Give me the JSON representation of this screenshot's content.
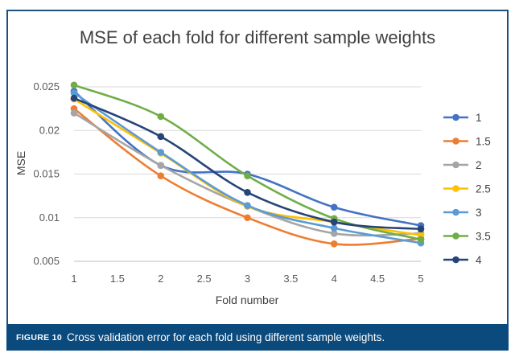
{
  "figure": {
    "label": "FIGURE 10",
    "caption": "Cross validation error for each fold using different sample weights."
  },
  "chart_data": {
    "type": "line",
    "title": "MSE of each fold for different sample weights",
    "xlabel": "Fold number",
    "ylabel": "MSE",
    "x": [
      1,
      2,
      3,
      4,
      5
    ],
    "xlim": [
      1,
      5
    ],
    "ylim": [
      0.005,
      0.025
    ],
    "x_ticks": [
      1,
      1.5,
      2,
      2.5,
      3,
      3.5,
      4,
      4.5,
      5
    ],
    "y_ticks": [
      0.005,
      0.01,
      0.015,
      0.02,
      0.025
    ],
    "y_tick_labels": [
      "0.005",
      "0.01",
      "0.015",
      "0.02",
      "0.025"
    ],
    "grid": "horizontal",
    "legend_position": "right",
    "series": [
      {
        "name": "1",
        "color": "#4472c4",
        "values": [
          0.0245,
          0.016,
          0.015,
          0.0112,
          0.0091
        ]
      },
      {
        "name": "1.5",
        "color": "#ed7d31",
        "values": [
          0.0225,
          0.0148,
          0.01,
          0.007,
          0.0076
        ]
      },
      {
        "name": "2",
        "color": "#a5a5a5",
        "values": [
          0.022,
          0.016,
          0.0113,
          0.0082,
          0.0082
        ]
      },
      {
        "name": "2.5",
        "color": "#ffc000",
        "values": [
          0.0236,
          0.0174,
          0.0113,
          0.0095,
          0.008
        ]
      },
      {
        "name": "3",
        "color": "#5b9bd5",
        "values": [
          0.0243,
          0.0175,
          0.0114,
          0.0088,
          0.0071
        ]
      },
      {
        "name": "3.5",
        "color": "#70ad47",
        "values": [
          0.0252,
          0.0216,
          0.0148,
          0.0099,
          0.0075
        ]
      },
      {
        "name": "4",
        "color": "#264478",
        "values": [
          0.0237,
          0.0193,
          0.0129,
          0.0095,
          0.0087
        ]
      }
    ]
  }
}
